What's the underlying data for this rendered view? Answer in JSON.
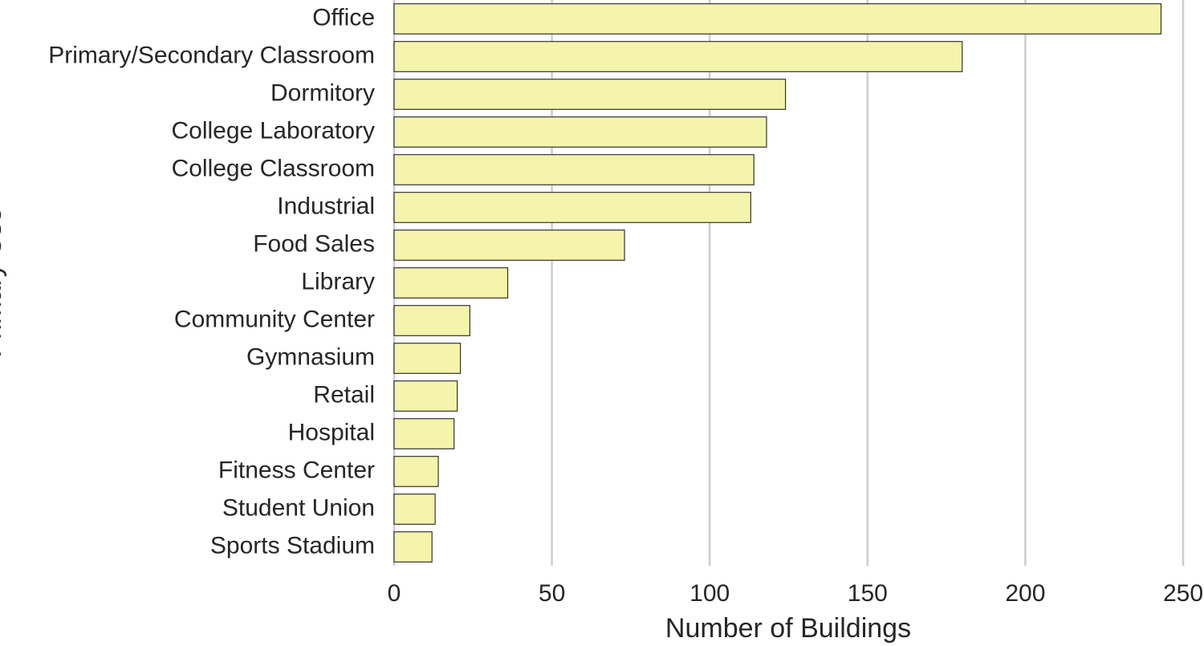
{
  "chart_data": {
    "type": "barh",
    "categories": [
      "Office",
      "Primary/Secondary Classroom",
      "Dormitory",
      "College Laboratory",
      "College Classroom",
      "Industrial",
      "Food Sales",
      "Library",
      "Community Center",
      "Gymnasium",
      "Retail",
      "Hospital",
      "Fitness Center",
      "Student Union",
      "Sports Stadium"
    ],
    "values": [
      243,
      180,
      124,
      118,
      114,
      113,
      73,
      36,
      24,
      21,
      20,
      19,
      14,
      13,
      12
    ],
    "color": "#f4f4ad",
    "xlabel": "Number of Buildings",
    "ylabel": "Primary Use",
    "xlim": [
      0,
      250
    ],
    "xticks": [
      0,
      50,
      100,
      150,
      200,
      250
    ],
    "grid": true
  }
}
